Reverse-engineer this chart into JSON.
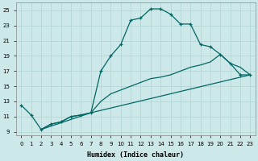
{
  "xlabel": "Humidex (Indice chaleur)",
  "bg_color": "#cce8e8",
  "grid_color": "#b8d8d8",
  "line_color": "#006666",
  "xlim": [
    -0.5,
    23.5
  ],
  "ylim": [
    8.5,
    26.0
  ],
  "xticks": [
    0,
    1,
    2,
    3,
    4,
    5,
    6,
    7,
    8,
    9,
    10,
    11,
    12,
    13,
    14,
    15,
    16,
    17,
    18,
    19,
    20,
    21,
    22,
    23
  ],
  "yticks": [
    9,
    11,
    13,
    15,
    17,
    19,
    21,
    23,
    25
  ],
  "line1_x": [
    0,
    1,
    2,
    3,
    4,
    5,
    6,
    7,
    8,
    9,
    10,
    11,
    12,
    13,
    14,
    15,
    16,
    17,
    18,
    19,
    20,
    21,
    22,
    23
  ],
  "line1_y": [
    12.5,
    11.2,
    9.3,
    10.0,
    10.3,
    11.0,
    11.2,
    11.5,
    17.0,
    19.0,
    20.5,
    23.7,
    24.0,
    25.2,
    25.2,
    24.5,
    23.2,
    23.2,
    20.5,
    20.2,
    19.2,
    18.0,
    16.5,
    16.5
  ],
  "line2_x": [
    2,
    3,
    4,
    5,
    6,
    7,
    23
  ],
  "line2_y": [
    9.3,
    10.0,
    10.3,
    11.0,
    11.2,
    11.5,
    16.5
  ],
  "line3_x": [
    2,
    7,
    8,
    9,
    10,
    11,
    12,
    13,
    14,
    15,
    16,
    17,
    18,
    19,
    20,
    21,
    22,
    23
  ],
  "line3_y": [
    9.3,
    11.5,
    13.0,
    14.0,
    14.5,
    15.0,
    15.5,
    16.0,
    16.2,
    16.5,
    17.0,
    17.5,
    17.8,
    18.2,
    19.2,
    18.0,
    17.5,
    16.5
  ]
}
